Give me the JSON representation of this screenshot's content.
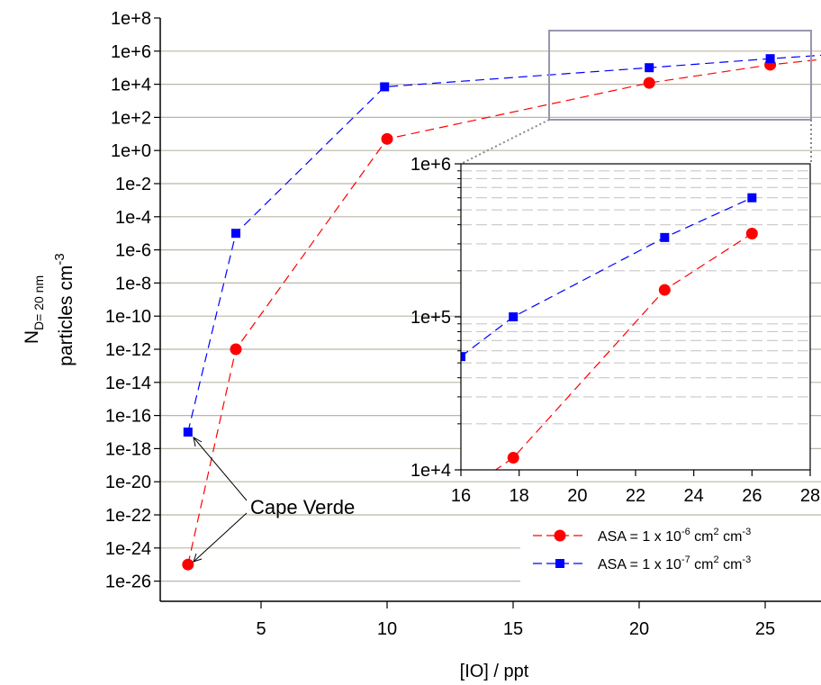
{
  "chart_data": [
    {
      "type": "line",
      "panel": "main",
      "xlabel": "[IO] / ppt",
      "ylabel_main": "N",
      "ylabel_sub": "D= 20 nm",
      "ylabel2": "particles cm",
      "ylabel2_sup": "-3",
      "yscale": "log",
      "xlim": [
        0,
        26
      ],
      "ylim": [
        1e-27,
        100000000.0
      ],
      "x_ticks": [
        "5",
        "10",
        "15",
        "20",
        "25"
      ],
      "y_ticks": [
        "1e+8",
        "1e+6",
        "1e+4",
        "1e+2",
        "1e+0",
        "1e-2",
        "1e-4",
        "1e-6",
        "1e-8",
        "1e-10",
        "1e-12",
        "1e-14",
        "1e-16",
        "1e-18",
        "1e-20",
        "1e-22",
        "1e-24",
        "1e-26"
      ],
      "grid": "horizontal",
      "series": [
        {
          "name": "ASA = 1 x 10-6 cm2 cm-3",
          "color": "#ff0000",
          "marker": "circle",
          "x": [
            2.1,
            4.0,
            10.0,
            20.4,
            25.2,
            27.5
          ],
          "y": [
            1e-25,
            1e-12,
            5,
            12000.0,
            150000.0,
            350000.0
          ]
        },
        {
          "name": "ASA = 1 x 10-7 cm2 cm-3",
          "color": "#0000ff",
          "marker": "square",
          "x": [
            2.1,
            4.0,
            9.9,
            20.4,
            25.2,
            27.5
          ],
          "y": [
            1e-17,
            1e-05,
            7000.0,
            100000.0,
            350000.0,
            600000.0
          ]
        }
      ],
      "annotations": [
        {
          "text": "Cape Verde"
        }
      ]
    },
    {
      "type": "line",
      "panel": "inset",
      "yscale": "log",
      "xlim": [
        16,
        28
      ],
      "ylim": [
        10000.0,
        1000000.0
      ],
      "x_ticks": [
        "16",
        "18",
        "20",
        "22",
        "24",
        "26",
        "28"
      ],
      "y_ticks": [
        "1e+6",
        "1e+5",
        "1e+4"
      ],
      "grid": "horizontal-dashed",
      "series": [
        {
          "name": "ASA = 1 x 10-6 cm2 cm-3",
          "color": "#ff0000",
          "marker": "circle",
          "x": [
            15.5,
            17.8,
            23.0,
            26.0
          ],
          "y": [
            6000,
            12000,
            150000,
            350000
          ]
        },
        {
          "name": "ASA = 1 x 10-7 cm2 cm-3",
          "color": "#0000ff",
          "marker": "square",
          "x": [
            16,
            17.8,
            23.0,
            26.0
          ],
          "y": [
            55000,
            100000,
            330000,
            600000
          ]
        }
      ]
    }
  ],
  "legend": {
    "entries": [
      {
        "pre": "ASA = 1 x 10",
        "sup1": "-6",
        "mid": " cm",
        "sup2": "2",
        "post": " cm",
        "sup3": "-3"
      },
      {
        "pre": "ASA = 1 x 10",
        "sup1": "-7",
        "mid": " cm",
        "sup2": "2",
        "post": " cm",
        "sup3": "-3"
      }
    ]
  },
  "colors": {
    "grid": "#bab6a8",
    "inset_grid": "#c8c8c8",
    "zoom_box": "#9797ad",
    "series1": "#ff0000",
    "series2": "#0000ff"
  }
}
